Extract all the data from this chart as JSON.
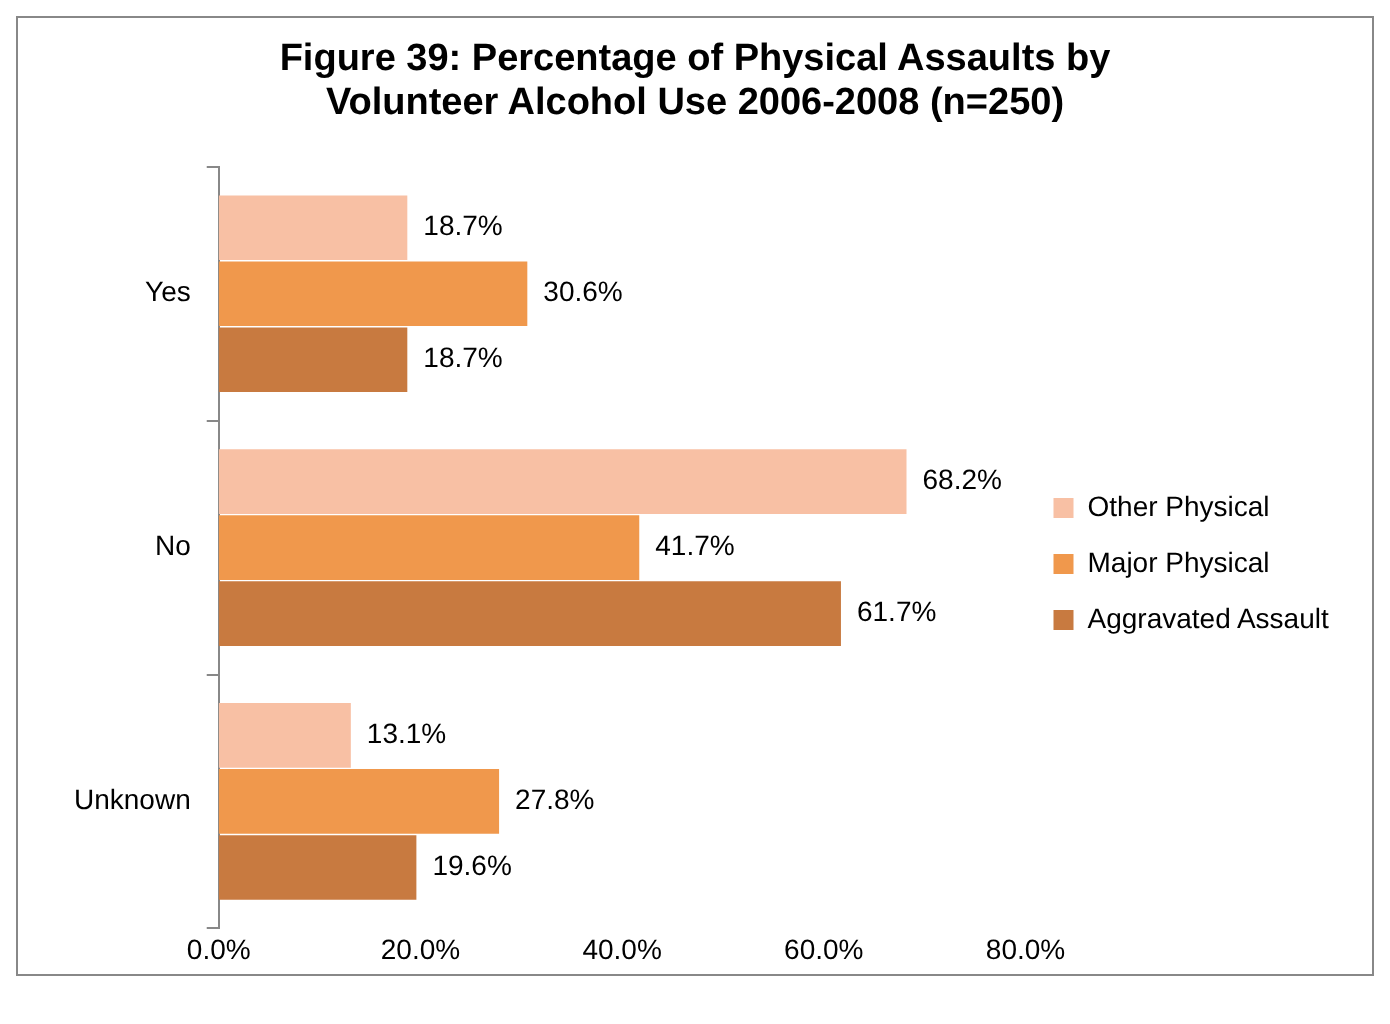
{
  "chart_data": {
    "type": "bar",
    "orientation": "horizontal",
    "title": "Figure 39:  Percentage of Physical Assaults by Volunteer Alcohol Use 2006-2008 (n=250)",
    "categories": [
      "Yes",
      "No",
      "Unknown"
    ],
    "series": [
      {
        "name": "Other Physical",
        "color": "#f8c0a4",
        "values": [
          18.7,
          68.2,
          13.1
        ],
        "value_labels": [
          "18.7%",
          "68.2%",
          "13.1%"
        ]
      },
      {
        "name": "Major Physical",
        "color": "#f0984c",
        "values": [
          30.6,
          41.7,
          27.8
        ],
        "value_labels": [
          "30.6%",
          "41.7%",
          "27.8%"
        ]
      },
      {
        "name": "Aggravated Assault",
        "color": "#c87a40",
        "values": [
          18.7,
          61.7,
          19.6
        ],
        "value_labels": [
          "18.7%",
          "61.7%",
          "19.6%"
        ]
      }
    ],
    "xlim": [
      0,
      80
    ],
    "xticks": [
      {
        "value": 0,
        "label": "0.0%"
      },
      {
        "value": 20,
        "label": "20.0%"
      },
      {
        "value": 40,
        "label": "40.0%"
      },
      {
        "value": 60,
        "label": "60.0%"
      },
      {
        "value": 80,
        "label": "80.0%"
      }
    ],
    "grid": false,
    "legend": "right"
  }
}
